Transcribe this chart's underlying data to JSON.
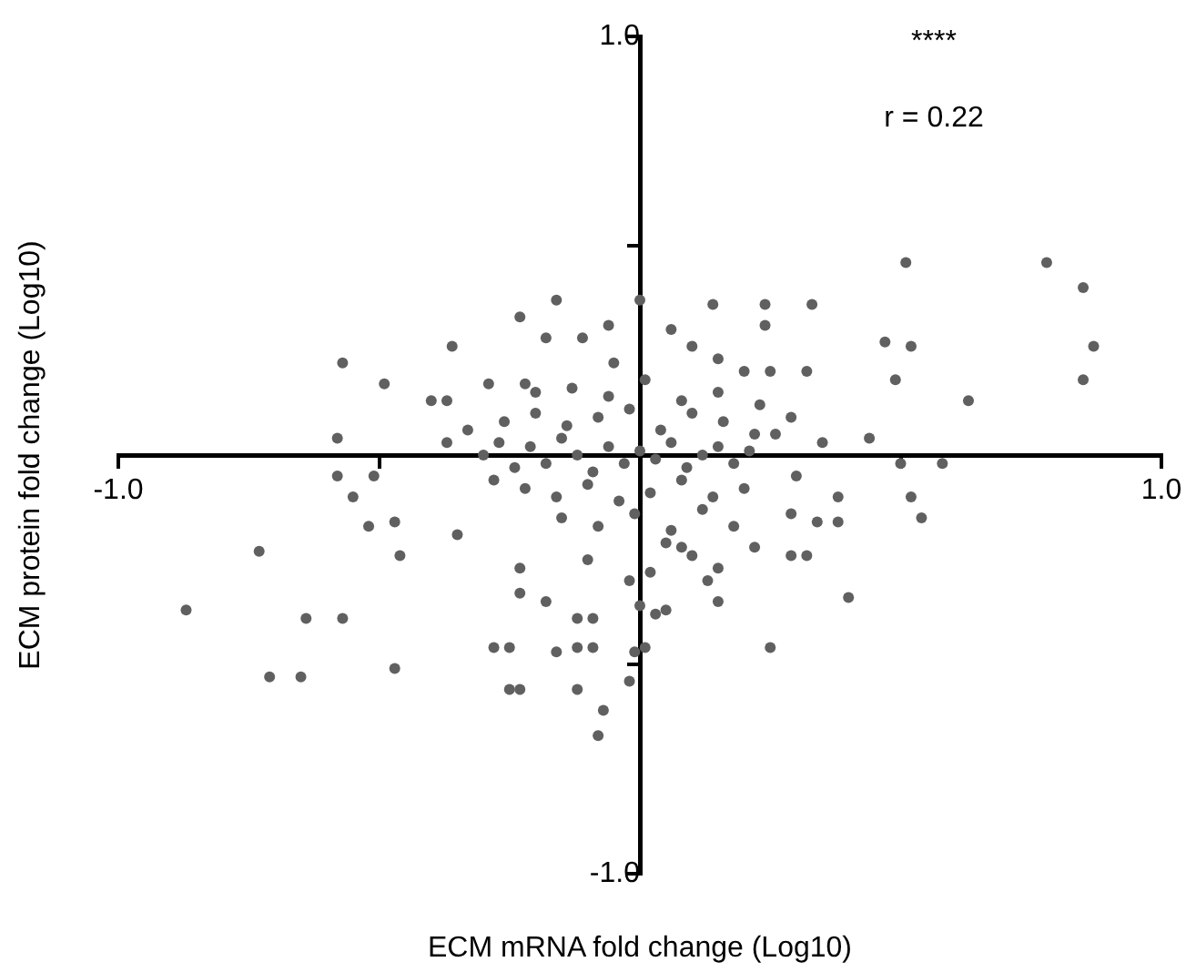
{
  "chart_data": {
    "type": "scatter",
    "xlabel": "ECM mRNA fold change (Log10)",
    "ylabel": "ECM protein fold change (Log10)",
    "annotations": [
      "****",
      "r = 0.22"
    ],
    "color": "#606060",
    "marker": "circle",
    "xlim": [
      -1,
      1
    ],
    "ylim": [
      -1,
      1
    ],
    "xticks": [
      {
        "value": -1,
        "label": "-1.0"
      },
      {
        "value": -0.5,
        "label": null
      },
      {
        "value": 0.5,
        "label": null
      },
      {
        "value": 1,
        "label": "1.0"
      }
    ],
    "yticks": [
      {
        "value": -1,
        "label": "-1.0"
      },
      {
        "value": -0.5,
        "label": null
      },
      {
        "value": 0.5,
        "label": null
      },
      {
        "value": 1,
        "label": "1.0"
      }
    ],
    "x": [
      0.51,
      0.78,
      0.85,
      0.87,
      0.85,
      0.63,
      0.52,
      0.49,
      0.47,
      0.33,
      0.24,
      0.24,
      0.25,
      0.32,
      0.14,
      -0.16,
      -0.23,
      0.0,
      -0.06,
      -0.57,
      -0.49,
      -0.36,
      -0.4,
      -0.37,
      -0.29,
      0.15,
      0.2,
      0.23,
      0.29,
      0.35,
      0.44,
      -0.58,
      -0.37,
      -0.22,
      -0.18,
      -0.11,
      0.06,
      0.1,
      -0.87,
      -0.73,
      -0.71,
      -0.65,
      -0.64,
      -0.57,
      -0.47,
      -0.58,
      -0.51,
      -0.55,
      -0.52,
      -0.47,
      -0.46,
      -0.35,
      -0.23,
      -0.28,
      -0.25,
      -0.23,
      -0.18,
      -0.12,
      -0.09,
      -0.09,
      -0.25,
      -0.23,
      -0.12,
      -0.07,
      -0.08,
      -0.02,
      0.01,
      0.0,
      0.03,
      0.05,
      0.15,
      0.15,
      0.25,
      0.4,
      0.29,
      0.32,
      0.29,
      0.34,
      0.38,
      0.38,
      0.52,
      0.54,
      0.58,
      0.5,
      0.22,
      0.18,
      0.08,
      0.13,
      -0.16,
      -0.12,
      -0.01,
      -0.3,
      -0.27,
      -0.24,
      -0.21,
      -0.18,
      -0.15,
      -0.12,
      -0.09,
      -0.06,
      -0.03,
      0.0,
      0.03,
      0.06,
      0.09,
      0.12,
      0.15,
      0.18,
      0.21,
      -0.26,
      -0.2,
      -0.14,
      -0.08,
      -0.02,
      0.04,
      0.1,
      0.16,
      0.22,
      -0.22,
      -0.16,
      -0.1,
      -0.04,
      0.02,
      0.08,
      0.14,
      0.2,
      -0.2,
      -0.13,
      -0.06,
      0.01,
      0.08,
      0.15,
      -0.15,
      -0.08,
      -0.01,
      0.06,
      0.12,
      -0.33,
      -0.28,
      0.26,
      0.3,
      -0.05,
      0.05,
      -0.1,
      0.1,
      -0.02,
      0.02
    ],
    "values": [
      0.46,
      0.46,
      0.4,
      0.26,
      0.18,
      0.13,
      0.26,
      0.18,
      0.27,
      0.36,
      0.36,
      0.31,
      0.2,
      0.2,
      0.36,
      0.37,
      0.33,
      0.37,
      0.31,
      0.22,
      0.17,
      0.26,
      0.13,
      0.13,
      0.17,
      0.23,
      0.2,
      0.12,
      0.09,
      0.03,
      0.04,
      0.04,
      0.03,
      0.17,
      0.28,
      0.28,
      0.3,
      0.26,
      -0.37,
      -0.23,
      -0.53,
      -0.53,
      -0.39,
      -0.39,
      -0.51,
      -0.05,
      -0.05,
      -0.1,
      -0.17,
      -0.16,
      -0.24,
      -0.19,
      -0.27,
      -0.46,
      -0.46,
      -0.33,
      -0.35,
      -0.39,
      -0.39,
      -0.46,
      -0.56,
      -0.56,
      -0.56,
      -0.61,
      -0.67,
      -0.54,
      -0.46,
      -0.36,
      -0.38,
      -0.37,
      -0.35,
      -0.27,
      -0.46,
      -0.34,
      -0.24,
      -0.24,
      -0.14,
      -0.16,
      -0.16,
      -0.1,
      -0.1,
      -0.15,
      -0.02,
      -0.02,
      -0.22,
      -0.17,
      -0.22,
      -0.3,
      -0.47,
      -0.46,
      -0.47,
      0.0,
      0.03,
      -0.03,
      0.02,
      -0.02,
      0.04,
      0.0,
      -0.04,
      0.02,
      -0.02,
      0.01,
      -0.01,
      0.03,
      -0.03,
      0.0,
      0.02,
      -0.02,
      0.01,
      0.08,
      0.1,
      0.07,
      0.09,
      0.11,
      0.06,
      0.1,
      0.08,
      0.05,
      -0.08,
      -0.1,
      -0.07,
      -0.11,
      -0.09,
      -0.06,
      -0.1,
      -0.08,
      0.15,
      0.16,
      0.14,
      0.18,
      0.13,
      0.15,
      -0.15,
      -0.17,
      -0.14,
      -0.18,
      -0.13,
      0.06,
      -0.06,
      0.05,
      -0.05,
      0.22,
      -0.21,
      -0.25,
      -0.24,
      -0.3,
      -0.28
    ]
  }
}
